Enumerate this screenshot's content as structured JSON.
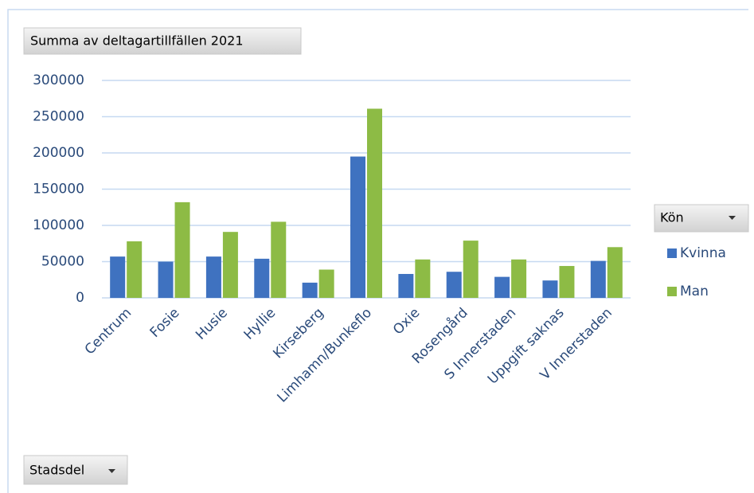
{
  "chart_data": {
    "type": "bar",
    "title": "Summa av deltagartillfällen 2021",
    "categories": [
      "Centrum",
      "Fosie",
      "Husie",
      "Hyllie",
      "Kirseberg",
      "Limhamn/Bunkeflo",
      "Oxie",
      "Rosengård",
      "S Innerstaden",
      "Uppgift saknas",
      "V Innerstaden"
    ],
    "series": [
      {
        "name": "Kvinna",
        "color": "#3f72c0",
        "values": [
          57000,
          50000,
          57000,
          54000,
          21000,
          195000,
          33000,
          36000,
          29000,
          24000,
          51000
        ]
      },
      {
        "name": "Man",
        "color": "#8dbb45",
        "values": [
          78000,
          132000,
          91000,
          105000,
          39000,
          261000,
          53000,
          79000,
          53000,
          44000,
          70000
        ]
      }
    ],
    "ylim": [
      0,
      300000
    ],
    "yticks": [
      0,
      50000,
      100000,
      150000,
      200000,
      250000,
      300000
    ],
    "grid": true,
    "legend_title": "Kön",
    "xlabel": "Stadsdel"
  }
}
